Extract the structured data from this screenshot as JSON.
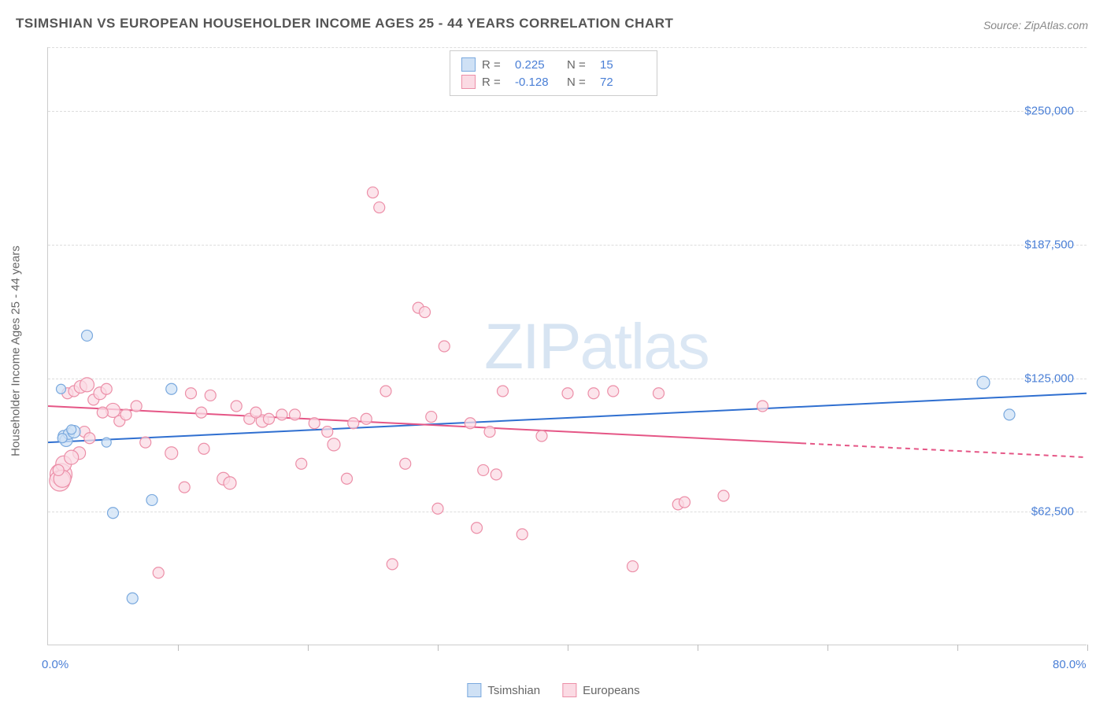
{
  "title": "TSIMSHIAN VS EUROPEAN HOUSEHOLDER INCOME AGES 25 - 44 YEARS CORRELATION CHART",
  "source": "Source: ZipAtlas.com",
  "yaxis_title": "Householder Income Ages 25 - 44 years",
  "watermark_a": "ZIP",
  "watermark_b": "atlas",
  "chart": {
    "type": "scatter",
    "background_color": "#ffffff",
    "grid_color": "#dddddd",
    "axis_color": "#cccccc",
    "xlim": [
      0,
      80
    ],
    "ylim": [
      0,
      280000
    ],
    "xtick_step": 10,
    "ytick_step": 62500,
    "xtick_labels": {
      "0": "0.0%",
      "80": "80.0%"
    },
    "ytick_labels": [
      "$62,500",
      "$125,000",
      "$187,500",
      "$250,000"
    ],
    "tick_label_color": "#4a7fd6",
    "tick_label_fontsize": 15,
    "title_color": "#555555",
    "title_fontsize": 17,
    "series": [
      {
        "name": "Tsimshian",
        "fill": "#cfe1f5",
        "stroke": "#7aa9de",
        "stroke_width": 1.2,
        "r_label": "R =",
        "r_value": "0.225",
        "n_label": "N =",
        "n_value": "15",
        "trend": {
          "color": "#2f6fd0",
          "width": 2,
          "y_at_xmin": 95000,
          "y_at_xmax": 118000
        },
        "points": [
          {
            "x": 1.0,
            "y": 120000,
            "r": 6
          },
          {
            "x": 1.2,
            "y": 98000,
            "r": 7
          },
          {
            "x": 1.4,
            "y": 96000,
            "r": 8
          },
          {
            "x": 1.6,
            "y": 99000,
            "r": 7
          },
          {
            "x": 2.0,
            "y": 100000,
            "r": 8
          },
          {
            "x": 3.0,
            "y": 145000,
            "r": 7
          },
          {
            "x": 4.5,
            "y": 95000,
            "r": 6
          },
          {
            "x": 5.0,
            "y": 62000,
            "r": 7
          },
          {
            "x": 6.5,
            "y": 22000,
            "r": 7
          },
          {
            "x": 8.0,
            "y": 68000,
            "r": 7
          },
          {
            "x": 9.5,
            "y": 120000,
            "r": 7
          },
          {
            "x": 72.0,
            "y": 123000,
            "r": 8
          },
          {
            "x": 74.0,
            "y": 108000,
            "r": 7
          },
          {
            "x": 1.8,
            "y": 101000,
            "r": 6
          },
          {
            "x": 1.1,
            "y": 97000,
            "r": 6
          }
        ]
      },
      {
        "name": "Europeans",
        "fill": "#fbdbe4",
        "stroke": "#ec8fa8",
        "stroke_width": 1.2,
        "r_label": "R =",
        "r_value": "-0.128",
        "n_label": "N =",
        "n_value": "72",
        "trend": {
          "color": "#e55686",
          "width": 2,
          "y_at_xmin": 112000,
          "y_at_xmax": 88000,
          "dash_from_x": 58
        },
        "points": [
          {
            "x": 1.0,
            "y": 80000,
            "r": 14
          },
          {
            "x": 1.2,
            "y": 85000,
            "r": 10
          },
          {
            "x": 1.5,
            "y": 118000,
            "r": 7
          },
          {
            "x": 2.0,
            "y": 119000,
            "r": 7
          },
          {
            "x": 2.5,
            "y": 121000,
            "r": 8
          },
          {
            "x": 3.0,
            "y": 122000,
            "r": 9
          },
          {
            "x": 3.5,
            "y": 115000,
            "r": 7
          },
          {
            "x": 4.0,
            "y": 118000,
            "r": 8
          },
          {
            "x": 4.5,
            "y": 120000,
            "r": 7
          },
          {
            "x": 5.0,
            "y": 110000,
            "r": 9
          },
          {
            "x": 5.5,
            "y": 105000,
            "r": 7
          },
          {
            "x": 6.0,
            "y": 108000,
            "r": 7
          },
          {
            "x": 7.5,
            "y": 95000,
            "r": 7
          },
          {
            "x": 8.5,
            "y": 34000,
            "r": 7
          },
          {
            "x": 9.5,
            "y": 90000,
            "r": 8
          },
          {
            "x": 10.5,
            "y": 74000,
            "r": 7
          },
          {
            "x": 11.0,
            "y": 118000,
            "r": 7
          },
          {
            "x": 12.5,
            "y": 117000,
            "r": 7
          },
          {
            "x": 13.5,
            "y": 78000,
            "r": 8
          },
          {
            "x": 14.5,
            "y": 112000,
            "r": 7
          },
          {
            "x": 15.5,
            "y": 106000,
            "r": 7
          },
          {
            "x": 16.5,
            "y": 105000,
            "r": 8
          },
          {
            "x": 18.0,
            "y": 108000,
            "r": 7
          },
          {
            "x": 19.5,
            "y": 85000,
            "r": 7
          },
          {
            "x": 20.5,
            "y": 104000,
            "r": 7
          },
          {
            "x": 21.5,
            "y": 100000,
            "r": 7
          },
          {
            "x": 22.0,
            "y": 94000,
            "r": 8
          },
          {
            "x": 23.0,
            "y": 78000,
            "r": 7
          },
          {
            "x": 24.5,
            "y": 106000,
            "r": 7
          },
          {
            "x": 25.0,
            "y": 212000,
            "r": 7
          },
          {
            "x": 25.5,
            "y": 205000,
            "r": 7
          },
          {
            "x": 26.0,
            "y": 119000,
            "r": 7
          },
          {
            "x": 26.5,
            "y": 38000,
            "r": 7
          },
          {
            "x": 27.5,
            "y": 85000,
            "r": 7
          },
          {
            "x": 28.5,
            "y": 158000,
            "r": 7
          },
          {
            "x": 29.0,
            "y": 156000,
            "r": 7
          },
          {
            "x": 29.5,
            "y": 107000,
            "r": 7
          },
          {
            "x": 30.0,
            "y": 64000,
            "r": 7
          },
          {
            "x": 30.5,
            "y": 140000,
            "r": 7
          },
          {
            "x": 32.5,
            "y": 104000,
            "r": 7
          },
          {
            "x": 33.0,
            "y": 55000,
            "r": 7
          },
          {
            "x": 33.5,
            "y": 82000,
            "r": 7
          },
          {
            "x": 34.0,
            "y": 100000,
            "r": 7
          },
          {
            "x": 34.5,
            "y": 80000,
            "r": 7
          },
          {
            "x": 35.0,
            "y": 119000,
            "r": 7
          },
          {
            "x": 36.5,
            "y": 52000,
            "r": 7
          },
          {
            "x": 38.0,
            "y": 98000,
            "r": 7
          },
          {
            "x": 40.0,
            "y": 118000,
            "r": 7
          },
          {
            "x": 42.0,
            "y": 118000,
            "r": 7
          },
          {
            "x": 45.0,
            "y": 37000,
            "r": 7
          },
          {
            "x": 47.0,
            "y": 118000,
            "r": 7
          },
          {
            "x": 48.5,
            "y": 66000,
            "r": 7
          },
          {
            "x": 49.0,
            "y": 67000,
            "r": 7
          },
          {
            "x": 55.0,
            "y": 112000,
            "r": 7
          },
          {
            "x": 2.8,
            "y": 100000,
            "r": 7
          },
          {
            "x": 3.2,
            "y": 97000,
            "r": 7
          },
          {
            "x": 4.2,
            "y": 109000,
            "r": 7
          },
          {
            "x": 6.8,
            "y": 112000,
            "r": 7
          },
          {
            "x": 11.8,
            "y": 109000,
            "r": 7
          },
          {
            "x": 14.0,
            "y": 76000,
            "r": 8
          },
          {
            "x": 16.0,
            "y": 109000,
            "r": 7
          },
          {
            "x": 17.0,
            "y": 106000,
            "r": 7
          },
          {
            "x": 19.0,
            "y": 108000,
            "r": 7
          },
          {
            "x": 2.4,
            "y": 90000,
            "r": 8
          },
          {
            "x": 1.8,
            "y": 88000,
            "r": 9
          },
          {
            "x": 0.9,
            "y": 77000,
            "r": 13
          },
          {
            "x": 1.1,
            "y": 78000,
            "r": 11
          },
          {
            "x": 0.8,
            "y": 82000,
            "r": 7
          },
          {
            "x": 52.0,
            "y": 70000,
            "r": 7
          },
          {
            "x": 43.5,
            "y": 119000,
            "r": 7
          },
          {
            "x": 23.5,
            "y": 104000,
            "r": 7
          },
          {
            "x": 12.0,
            "y": 92000,
            "r": 7
          }
        ]
      }
    ]
  },
  "bottom_legend": [
    {
      "name": "Tsimshian",
      "fill": "#cfe1f5",
      "stroke": "#7aa9de"
    },
    {
      "name": "Europeans",
      "fill": "#fbdbe4",
      "stroke": "#ec8fa8"
    }
  ]
}
